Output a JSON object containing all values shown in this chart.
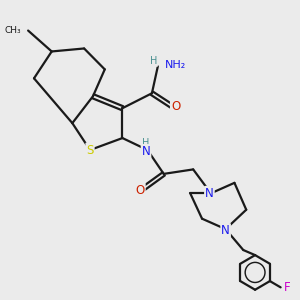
{
  "background_color": "#ebebeb",
  "bond_color": "#1a1a1a",
  "bond_width": 1.6,
  "atom_colors": {
    "N": "#1a1aee",
    "O": "#cc2200",
    "S": "#cccc00",
    "F": "#cc00cc",
    "H": "#4a9090",
    "C": "#1a1a1a"
  },
  "font_size_atoms": 8.5,
  "font_size_small": 7.0
}
